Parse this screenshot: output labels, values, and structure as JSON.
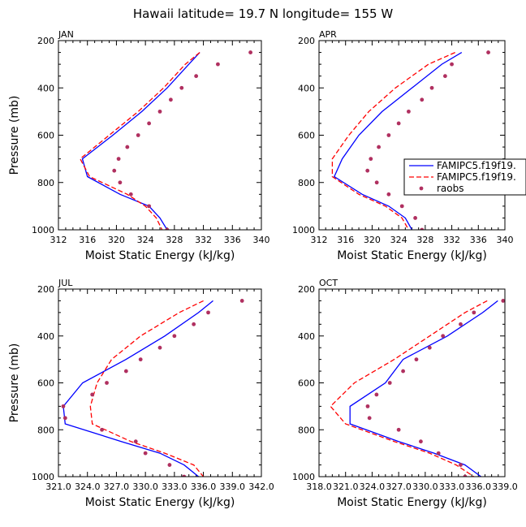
{
  "title": "Hawaii  latitude= 19.7 N longitude= 155 W",
  "colors": {
    "model1": "#0000ff",
    "model2": "#ff0000",
    "obs": "#b03060",
    "axis": "#000000"
  },
  "legend": {
    "entries": [
      "FAMIPC5.f19f19.",
      "FAMIPC5.f19f19.",
      "raobs"
    ]
  },
  "chart_data": [
    {
      "type": "line",
      "panel": "JAN",
      "xlabel": "Moist Static Energy (kJ/kg)",
      "ylabel": "Pressure (mb)",
      "xlim": [
        312,
        340
      ],
      "ylim": [
        1000,
        200
      ],
      "xticks": [
        312,
        316,
        320,
        324,
        328,
        332,
        336,
        340
      ],
      "xticklabels": [
        "312",
        "316",
        "320",
        "324",
        "328",
        "332",
        "336",
        "340"
      ],
      "yticks": [
        200,
        400,
        600,
        800,
        1000
      ],
      "yticklabels": [
        "200",
        "400",
        "600",
        "800",
        "1000"
      ],
      "pressure": [
        250,
        300,
        400,
        500,
        600,
        700,
        775,
        850,
        900,
        950,
        1000
      ],
      "series": [
        {
          "name": "FAMIPC5.f19f19.",
          "style": "solid",
          "values": [
            331.5,
            330.0,
            327.0,
            323.5,
            319.5,
            315.3,
            316.0,
            320.5,
            324.5,
            326.0,
            327.0
          ]
        },
        {
          "name": "FAMIPC5.f19f19.",
          "style": "dashed",
          "values": [
            331.5,
            329.5,
            326.5,
            323.0,
            319.0,
            315.0,
            316.3,
            321.5,
            324.0,
            325.5,
            326.3
          ]
        },
        {
          "name": "raobs",
          "style": "dots",
          "pressure": [
            250,
            300,
            350,
            400,
            450,
            500,
            550,
            600,
            650,
            700,
            750,
            800,
            850,
            900,
            1000
          ],
          "values": [
            338.5,
            334.0,
            331.0,
            329.0,
            327.5,
            326.0,
            324.5,
            323.0,
            321.5,
            320.3,
            319.7,
            320.5,
            322.0,
            324.5,
            327.0
          ]
        }
      ]
    },
    {
      "type": "line",
      "panel": "APR",
      "xlabel": "Moist Static Energy (kJ/kg)",
      "ylabel": "",
      "xlim": [
        312,
        340
      ],
      "ylim": [
        1000,
        200
      ],
      "xticks": [
        312,
        316,
        320,
        324,
        328,
        332,
        336,
        340
      ],
      "xticklabels": [
        "312",
        "316",
        "320",
        "324",
        "328",
        "332",
        "336",
        "340"
      ],
      "yticks": [
        200,
        400,
        600,
        800,
        1000
      ],
      "yticklabels": [
        "200",
        "400",
        "600",
        "800",
        "1000"
      ],
      "pressure": [
        250,
        300,
        400,
        500,
        600,
        700,
        775,
        850,
        900,
        950,
        1000
      ],
      "series": [
        {
          "name": "FAMIPC5.f19f19.",
          "style": "solid",
          "values": [
            333.5,
            330.5,
            326.0,
            321.5,
            318.0,
            315.5,
            314.3,
            318.5,
            322.5,
            325.0,
            326.0
          ]
        },
        {
          "name": "FAMIPC5.f19f19.",
          "style": "dashed",
          "values": [
            332.5,
            328.5,
            323.5,
            319.5,
            316.5,
            314.0,
            314.0,
            318.0,
            322.0,
            324.5,
            325.5
          ]
        },
        {
          "name": "raobs",
          "style": "dots",
          "pressure": [
            250,
            300,
            350,
            400,
            450,
            500,
            550,
            600,
            650,
            700,
            750,
            800,
            850,
            900,
            950,
            1000
          ],
          "values": [
            337.5,
            332.0,
            331.0,
            329.0,
            327.5,
            325.5,
            324.0,
            322.5,
            321.0,
            319.8,
            319.3,
            320.7,
            322.5,
            324.5,
            326.5,
            327.5
          ]
        }
      ]
    },
    {
      "type": "line",
      "panel": "JUL",
      "xlabel": "Moist Static Energy (kJ/kg)",
      "ylabel": "Pressure (mb)",
      "xlim": [
        321.0,
        342.0
      ],
      "ylim": [
        1000,
        200
      ],
      "xticks": [
        321.0,
        324.0,
        327.0,
        330.0,
        333.0,
        336.0,
        339.0,
        342.0
      ],
      "xticklabels": [
        "321.0",
        "324.0",
        "327.0",
        "330.0",
        "333.0",
        "336.0",
        "339.0",
        "342.0"
      ],
      "yticks": [
        200,
        400,
        600,
        800,
        1000
      ],
      "yticklabels": [
        "200",
        "400",
        "600",
        "800",
        "1000"
      ],
      "pressure": [
        250,
        300,
        400,
        500,
        600,
        700,
        775,
        850,
        900,
        950,
        1000
      ],
      "series": [
        {
          "name": "FAMIPC5.f19f19.",
          "style": "solid",
          "values": [
            337.0,
            335.5,
            332.0,
            328.0,
            323.5,
            321.5,
            321.7,
            327.5,
            331.5,
            334.0,
            335.5
          ]
        },
        {
          "name": "FAMIPC5.f19f19.",
          "style": "dashed",
          "values": [
            336.0,
            333.5,
            329.5,
            326.5,
            325.0,
            324.3,
            324.5,
            328.5,
            332.0,
            335.0,
            336.0
          ]
        },
        {
          "name": "raobs",
          "style": "dots",
          "pressure": [
            250,
            300,
            350,
            400,
            450,
            500,
            550,
            600,
            650,
            700,
            750,
            800,
            850,
            900,
            950,
            1000
          ],
          "values": [
            340.0,
            336.5,
            335.0,
            333.0,
            331.5,
            329.5,
            328.0,
            326.0,
            324.5,
            321.5,
            321.7,
            325.5,
            329.0,
            330.0,
            332.5,
            334.0
          ]
        }
      ]
    },
    {
      "type": "line",
      "panel": "OCT",
      "xlabel": "Moist Static Energy (kJ/kg)",
      "ylabel": "",
      "xlim": [
        318.0,
        339.0
      ],
      "ylim": [
        1000,
        200
      ],
      "xticks": [
        318.0,
        321.0,
        324.0,
        327.0,
        330.0,
        333.0,
        336.0,
        339.0
      ],
      "xticklabels": [
        "318.0",
        "321.0",
        "324.0",
        "327.0",
        "330.0",
        "333.0",
        "336.0",
        "339.0"
      ],
      "yticks": [
        200,
        400,
        600,
        800,
        1000
      ],
      "yticklabels": [
        "200",
        "400",
        "600",
        "800",
        "1000"
      ],
      "pressure": [
        250,
        300,
        400,
        500,
        600,
        700,
        775,
        850,
        900,
        950,
        1000
      ],
      "series": [
        {
          "name": "FAMIPC5.f19f19.",
          "style": "solid",
          "values": [
            338.2,
            336.5,
            332.5,
            327.5,
            325.5,
            321.5,
            321.5,
            327.0,
            331.0,
            334.5,
            336.3
          ]
        },
        {
          "name": "FAMIPC5.f19f19.",
          "style": "dashed",
          "values": [
            337.0,
            334.5,
            330.5,
            326.5,
            322.0,
            319.3,
            321.0,
            326.5,
            330.5,
            333.5,
            335.5
          ]
        },
        {
          "name": "raobs",
          "style": "dots",
          "pressure": [
            250,
            300,
            350,
            400,
            450,
            500,
            550,
            600,
            650,
            700,
            750,
            800,
            850,
            900,
            950,
            1000
          ],
          "values": [
            338.8,
            335.5,
            334.0,
            332.0,
            330.5,
            329.0,
            327.5,
            326.0,
            324.5,
            323.5,
            323.7,
            327.0,
            329.5,
            331.5,
            334.0,
            334.5
          ]
        }
      ]
    }
  ]
}
